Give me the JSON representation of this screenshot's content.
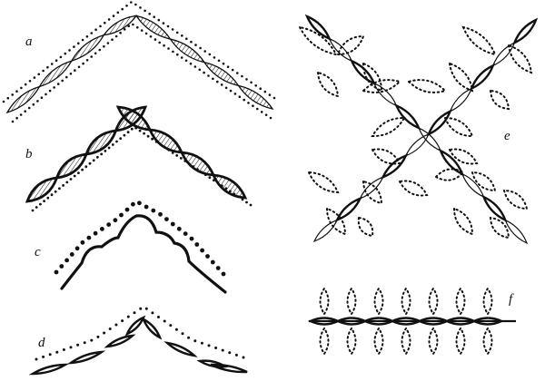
{
  "figures": [
    {
      "id": "a",
      "label": "a",
      "description_style": "hatched-leaf-chain-with-dotted-outline"
    },
    {
      "id": "b",
      "label": "b",
      "description_style": "twisted-cord-with-hatched-lozenges"
    },
    {
      "id": "c",
      "label": "c",
      "description_style": "scalloped-cord-with-dots"
    },
    {
      "id": "d",
      "label": "d",
      "description_style": "open-ovals-with-dots"
    },
    {
      "id": "e",
      "label": "e",
      "description_style": "crossed-twisted-cords-with-leaves"
    },
    {
      "id": "f",
      "label": "f",
      "description_style": "chain-with-dotted-loops"
    }
  ],
  "colors": {
    "ink": "#111111",
    "paper": "#ffffff"
  }
}
